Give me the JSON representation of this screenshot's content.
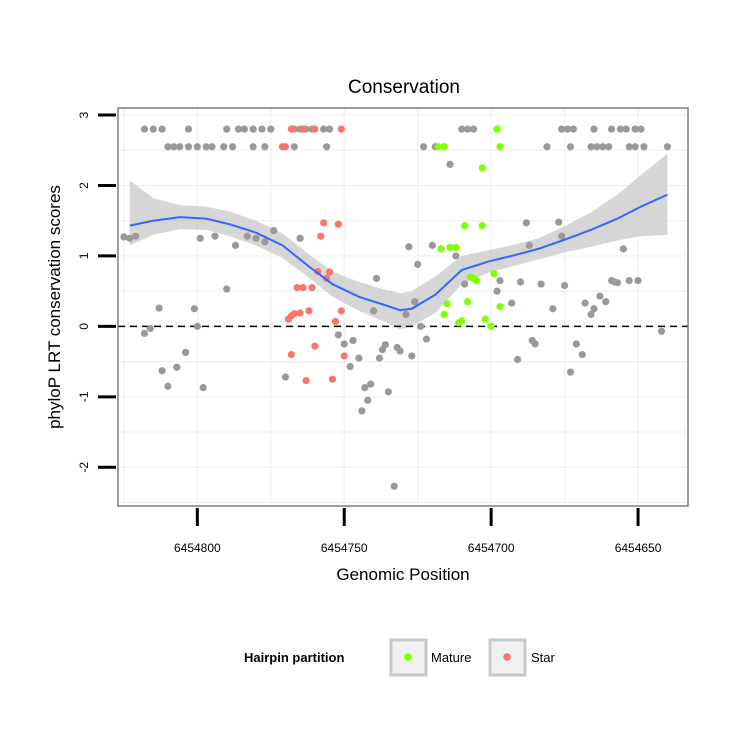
{
  "chart_data": {
    "type": "scatter",
    "title": "Conservation",
    "xlabel": "Genomic Position",
    "ylabel": "phyloP LRT conservation scores",
    "x_reversed": true,
    "xlim": [
      6454827,
      6454633
    ],
    "ylim": [
      -2.55,
      3.1
    ],
    "x_ticks": [
      6454800,
      6454750,
      6454700,
      6454650
    ],
    "x_tick_labels": [
      "6454800",
      "6454750",
      "6454700",
      "6454650"
    ],
    "y_ticks": [
      -2,
      -1,
      0,
      1,
      2,
      3
    ],
    "y_tick_labels": [
      "-2",
      "-1",
      "0",
      "1",
      "2",
      "3"
    ],
    "reference_line": {
      "y": 0,
      "style": "dashed"
    },
    "legend": {
      "title": "Hairpin partition",
      "position": "bottom",
      "entries": [
        {
          "label": "Mature",
          "color": "#7fff00"
        },
        {
          "label": "Star",
          "color": "#f8766d"
        }
      ]
    },
    "colors": {
      "other": "#999999",
      "mature": "#7fff00",
      "star": "#f8766d",
      "smooth": "#3366ff",
      "ribbon": "#c8c8c8"
    },
    "series": [
      {
        "name": "Other",
        "points": [
          [
            6454818,
            2.8
          ],
          [
            6454815,
            2.8
          ],
          [
            6454812,
            2.8
          ],
          [
            6454803,
            2.8
          ],
          [
            6454790,
            2.8
          ],
          [
            6454786,
            2.8
          ],
          [
            6454784,
            2.8
          ],
          [
            6454781,
            2.8
          ],
          [
            6454778,
            2.8
          ],
          [
            6454775,
            2.8
          ],
          [
            6454767,
            2.8
          ],
          [
            6454765,
            2.8
          ],
          [
            6454763,
            2.8
          ],
          [
            6454761,
            2.8
          ],
          [
            6454757,
            2.8
          ],
          [
            6454755,
            2.8
          ],
          [
            6454659,
            2.8
          ],
          [
            6454656,
            2.8
          ],
          [
            6454710,
            2.8
          ],
          [
            6454708,
            2.8
          ],
          [
            6454706,
            2.8
          ],
          [
            6454698,
            2.8
          ],
          [
            6454676,
            2.8
          ],
          [
            6454674,
            2.8
          ],
          [
            6454672,
            2.8
          ],
          [
            6454665,
            2.8
          ],
          [
            6454654,
            2.8
          ],
          [
            6454651,
            2.8
          ],
          [
            6454649,
            2.8
          ],
          [
            6454810,
            2.55
          ],
          [
            6454808,
            2.55
          ],
          [
            6454806,
            2.55
          ],
          [
            6454803,
            2.55
          ],
          [
            6454800,
            2.55
          ],
          [
            6454797,
            2.55
          ],
          [
            6454795,
            2.55
          ],
          [
            6454791,
            2.55
          ],
          [
            6454788,
            2.55
          ],
          [
            6454781,
            2.55
          ],
          [
            6454777,
            2.55
          ],
          [
            6454771,
            2.55
          ],
          [
            6454767,
            2.55
          ],
          [
            6454756,
            2.55
          ],
          [
            6454723,
            2.55
          ],
          [
            6454719,
            2.55
          ],
          [
            6454716,
            2.55
          ],
          [
            6454681,
            2.55
          ],
          [
            6454673,
            2.55
          ],
          [
            6454666,
            2.55
          ],
          [
            6454664,
            2.55
          ],
          [
            6454662,
            2.55
          ],
          [
            6454660,
            2.55
          ],
          [
            6454653,
            2.55
          ],
          [
            6454651,
            2.55
          ],
          [
            6454648,
            2.55
          ],
          [
            6454640,
            2.55
          ],
          [
            6454825,
            1.27
          ],
          [
            6454823,
            1.25
          ],
          [
            6454821,
            1.28
          ],
          [
            6454818,
            -0.1
          ],
          [
            6454816,
            -0.03
          ],
          [
            6454813,
            0.26
          ],
          [
            6454812,
            -0.63
          ],
          [
            6454810,
            -0.85
          ],
          [
            6454807,
            -0.58
          ],
          [
            6454804,
            -0.37
          ],
          [
            6454801,
            0.25
          ],
          [
            6454800,
            0.0
          ],
          [
            6454799,
            1.25
          ],
          [
            6454798,
            -0.87
          ],
          [
            6454794,
            1.28
          ],
          [
            6454790,
            0.53
          ],
          [
            6454787,
            1.15
          ],
          [
            6454783,
            1.28
          ],
          [
            6454780,
            1.25
          ],
          [
            6454777,
            1.2
          ],
          [
            6454774,
            1.36
          ],
          [
            6454770,
            -0.72
          ],
          [
            6454765,
            1.25
          ],
          [
            6454752,
            -0.12
          ],
          [
            6454750,
            -0.25
          ],
          [
            6454748,
            -0.57
          ],
          [
            6454747,
            -0.2
          ],
          [
            6454745,
            -0.45
          ],
          [
            6454744,
            -1.2
          ],
          [
            6454743,
            -0.87
          ],
          [
            6454742,
            -1.05
          ],
          [
            6454741,
            -0.82
          ],
          [
            6454740,
            0.22
          ],
          [
            6454739,
            0.68
          ],
          [
            6454738,
            -0.45
          ],
          [
            6454737,
            -0.33
          ],
          [
            6454736,
            -0.26
          ],
          [
            6454735,
            -0.93
          ],
          [
            6454733,
            -2.27
          ],
          [
            6454732,
            -0.3
          ],
          [
            6454731,
            -0.35
          ],
          [
            6454729,
            0.17
          ],
          [
            6454728,
            1.13
          ],
          [
            6454727,
            -0.42
          ],
          [
            6454726,
            0.35
          ],
          [
            6454725,
            0.88
          ],
          [
            6454724,
            0.0
          ],
          [
            6454722,
            -0.18
          ],
          [
            6454720,
            1.15
          ],
          [
            6454714,
            2.3
          ],
          [
            6454712,
            1.0
          ],
          [
            6454709,
            0.6
          ],
          [
            6454698,
            0.5
          ],
          [
            6454697,
            0.65
          ],
          [
            6454693,
            0.33
          ],
          [
            6454691,
            -0.47
          ],
          [
            6454690,
            0.63
          ],
          [
            6454688,
            1.47
          ],
          [
            6454687,
            1.15
          ],
          [
            6454686,
            -0.2
          ],
          [
            6454685,
            -0.25
          ],
          [
            6454683,
            0.6
          ],
          [
            6454679,
            0.25
          ],
          [
            6454677,
            1.48
          ],
          [
            6454676,
            1.28
          ],
          [
            6454675,
            0.58
          ],
          [
            6454673,
            -0.65
          ],
          [
            6454671,
            -0.25
          ],
          [
            6454669,
            -0.4
          ],
          [
            6454668,
            0.33
          ],
          [
            6454666,
            0.17
          ],
          [
            6454665,
            0.25
          ],
          [
            6454663,
            0.43
          ],
          [
            6454661,
            0.35
          ],
          [
            6454659,
            0.65
          ],
          [
            6454658,
            0.63
          ],
          [
            6454657,
            0.62
          ],
          [
            6454655,
            1.1
          ],
          [
            6454653,
            0.65
          ],
          [
            6454650,
            0.65
          ],
          [
            6454642,
            -0.07
          ]
        ]
      },
      {
        "name": "Mature",
        "points": [
          [
            6454718,
            2.55
          ],
          [
            6454716,
            2.55
          ],
          [
            6454698,
            2.8
          ],
          [
            6454697,
            2.55
          ],
          [
            6454717,
            1.1
          ],
          [
            6454716,
            0.17
          ],
          [
            6454715,
            0.32
          ],
          [
            6454714,
            1.12
          ],
          [
            6454712,
            1.12
          ],
          [
            6454711,
            0.05
          ],
          [
            6454710,
            0.08
          ],
          [
            6454709,
            1.43
          ],
          [
            6454708,
            0.35
          ],
          [
            6454707,
            0.7
          ],
          [
            6454706,
            0.68
          ],
          [
            6454705,
            0.65
          ],
          [
            6454703,
            2.25
          ],
          [
            6454703,
            1.43
          ],
          [
            6454702,
            0.1
          ],
          [
            6454700,
            0.0
          ],
          [
            6454699,
            0.75
          ],
          [
            6454697,
            0.28
          ]
        ]
      },
      {
        "name": "Star",
        "points": [
          [
            6454771,
            2.55
          ],
          [
            6454770,
            2.55
          ],
          [
            6454768,
            2.8
          ],
          [
            6454764,
            2.8
          ],
          [
            6454760,
            2.8
          ],
          [
            6454751,
            2.8
          ],
          [
            6454769,
            0.1
          ],
          [
            6454768,
            -0.4
          ],
          [
            6454768,
            0.15
          ],
          [
            6454767,
            0.18
          ],
          [
            6454766,
            0.55
          ],
          [
            6454765,
            0.19
          ],
          [
            6454764,
            0.55
          ],
          [
            6454763,
            -0.77
          ],
          [
            6454762,
            0.22
          ],
          [
            6454761,
            0.55
          ],
          [
            6454760,
            -0.28
          ],
          [
            6454759,
            0.78
          ],
          [
            6454758,
            1.28
          ],
          [
            6454757,
            1.47
          ],
          [
            6454756,
            0.68
          ],
          [
            6454755,
            0.77
          ],
          [
            6454754,
            -0.75
          ],
          [
            6454753,
            0.07
          ],
          [
            6454752,
            1.45
          ],
          [
            6454751,
            0.22
          ],
          [
            6454750,
            -0.42
          ]
        ]
      }
    ],
    "smooth_fit": {
      "x": [
        6454823,
        6454815,
        6454806,
        6454797,
        6454789,
        6454780,
        6454771,
        6454762,
        6454754,
        6454745,
        6454736,
        6454731,
        6454727,
        6454719,
        6454710,
        6454701,
        6454693,
        6454684,
        6454675,
        6454666,
        6454657,
        6454649,
        6454640
      ],
      "y": [
        1.43,
        1.5,
        1.55,
        1.53,
        1.45,
        1.33,
        1.15,
        0.85,
        0.6,
        0.42,
        0.3,
        0.23,
        0.25,
        0.45,
        0.8,
        0.92,
        1.0,
        1.1,
        1.23,
        1.37,
        1.53,
        1.7,
        1.87
      ],
      "lower": [
        1.15,
        1.3,
        1.38,
        1.37,
        1.28,
        1.15,
        0.97,
        0.69,
        0.42,
        0.22,
        0.06,
        -0.04,
        0.0,
        0.19,
        0.6,
        0.76,
        0.85,
        0.95,
        1.05,
        1.13,
        1.22,
        1.28,
        1.3
      ],
      "upper": [
        2.07,
        1.82,
        1.72,
        1.7,
        1.63,
        1.5,
        1.32,
        1.02,
        0.78,
        0.63,
        0.52,
        0.47,
        0.5,
        0.71,
        1.0,
        1.08,
        1.15,
        1.25,
        1.42,
        1.62,
        1.87,
        2.15,
        2.45
      ]
    }
  }
}
